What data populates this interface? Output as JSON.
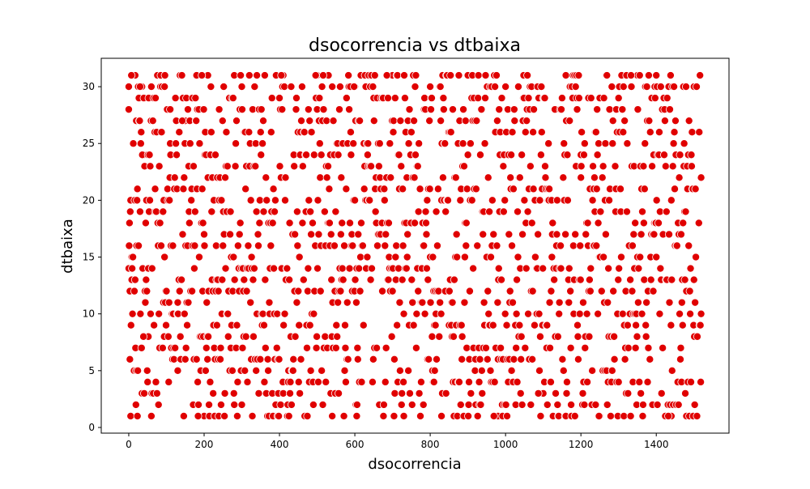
{
  "chart_data": {
    "type": "scatter",
    "title": "dsocorrencia vs dtbaixa",
    "xlabel": "dsocorrencia",
    "ylabel": "dtbaixa",
    "xlim": [
      -73,
      1593
    ],
    "ylim": [
      -0.5,
      32.5
    ],
    "x_ticks": [
      0,
      200,
      400,
      600,
      800,
      1000,
      1200,
      1400
    ],
    "y_ticks": [
      0,
      5,
      10,
      15,
      20,
      25,
      30
    ],
    "grid": false,
    "legend": "none",
    "marker_color": "#e00000",
    "marker_edge": "#ffffff",
    "point_count": 1520,
    "x_range": [
      0,
      1519
    ],
    "y_values_observed": [
      1,
      2,
      3,
      4,
      5,
      6,
      7,
      8,
      9,
      10,
      11,
      12,
      13,
      14,
      15,
      16,
      17,
      18,
      19,
      20,
      21,
      22,
      23,
      24,
      25,
      26,
      27,
      28,
      29,
      30,
      31
    ],
    "sample_points": [
      {
        "x": 0,
        "y": 28
      },
      {
        "x": 0,
        "y": 14
      },
      {
        "x": 3,
        "y": 6
      },
      {
        "x": 5,
        "y": 1
      },
      {
        "x": 8,
        "y": 15
      },
      {
        "x": 10,
        "y": 20
      },
      {
        "x": 13,
        "y": 12
      },
      {
        "x": 17,
        "y": 31
      },
      {
        "x": 20,
        "y": 27
      },
      {
        "x": 23,
        "y": 1
      },
      {
        "x": 30,
        "y": 19
      },
      {
        "x": 35,
        "y": 30
      },
      {
        "x": 40,
        "y": 24
      },
      {
        "x": 45,
        "y": 13
      },
      {
        "x": 52,
        "y": 8
      },
      {
        "x": 60,
        "y": 30
      },
      {
        "x": 70,
        "y": 21
      },
      {
        "x": 80,
        "y": 31
      },
      {
        "x": 95,
        "y": 15
      },
      {
        "x": 110,
        "y": 25
      },
      {
        "x": 130,
        "y": 11
      },
      {
        "x": 150,
        "y": 27
      },
      {
        "x": 180,
        "y": 31
      },
      {
        "x": 200,
        "y": 1
      },
      {
        "x": 210,
        "y": 31
      },
      {
        "x": 240,
        "y": 28
      },
      {
        "x": 280,
        "y": 2
      },
      {
        "x": 300,
        "y": 30
      },
      {
        "x": 340,
        "y": 31
      },
      {
        "x": 390,
        "y": 1
      },
      {
        "x": 410,
        "y": 31
      },
      {
        "x": 420,
        "y": 1
      },
      {
        "x": 460,
        "y": 30
      },
      {
        "x": 500,
        "y": 31
      },
      {
        "x": 530,
        "y": 31
      },
      {
        "x": 540,
        "y": 1
      },
      {
        "x": 600,
        "y": 30
      },
      {
        "x": 605,
        "y": 1
      },
      {
        "x": 650,
        "y": 31
      },
      {
        "x": 700,
        "y": 31
      },
      {
        "x": 730,
        "y": 1
      },
      {
        "x": 760,
        "y": 31
      },
      {
        "x": 800,
        "y": 30
      },
      {
        "x": 830,
        "y": 1
      },
      {
        "x": 900,
        "y": 31
      },
      {
        "x": 980,
        "y": 1
      },
      {
        "x": 1000,
        "y": 30
      },
      {
        "x": 1050,
        "y": 31
      },
      {
        "x": 1100,
        "y": 3
      },
      {
        "x": 1160,
        "y": 31
      },
      {
        "x": 1200,
        "y": 24
      },
      {
        "x": 1250,
        "y": 1
      },
      {
        "x": 1300,
        "y": 29
      },
      {
        "x": 1350,
        "y": 31
      },
      {
        "x": 1380,
        "y": 31
      },
      {
        "x": 1400,
        "y": 31
      },
      {
        "x": 1440,
        "y": 1
      },
      {
        "x": 1480,
        "y": 1
      },
      {
        "x": 1500,
        "y": 30
      },
      {
        "x": 1519,
        "y": 10
      }
    ]
  }
}
